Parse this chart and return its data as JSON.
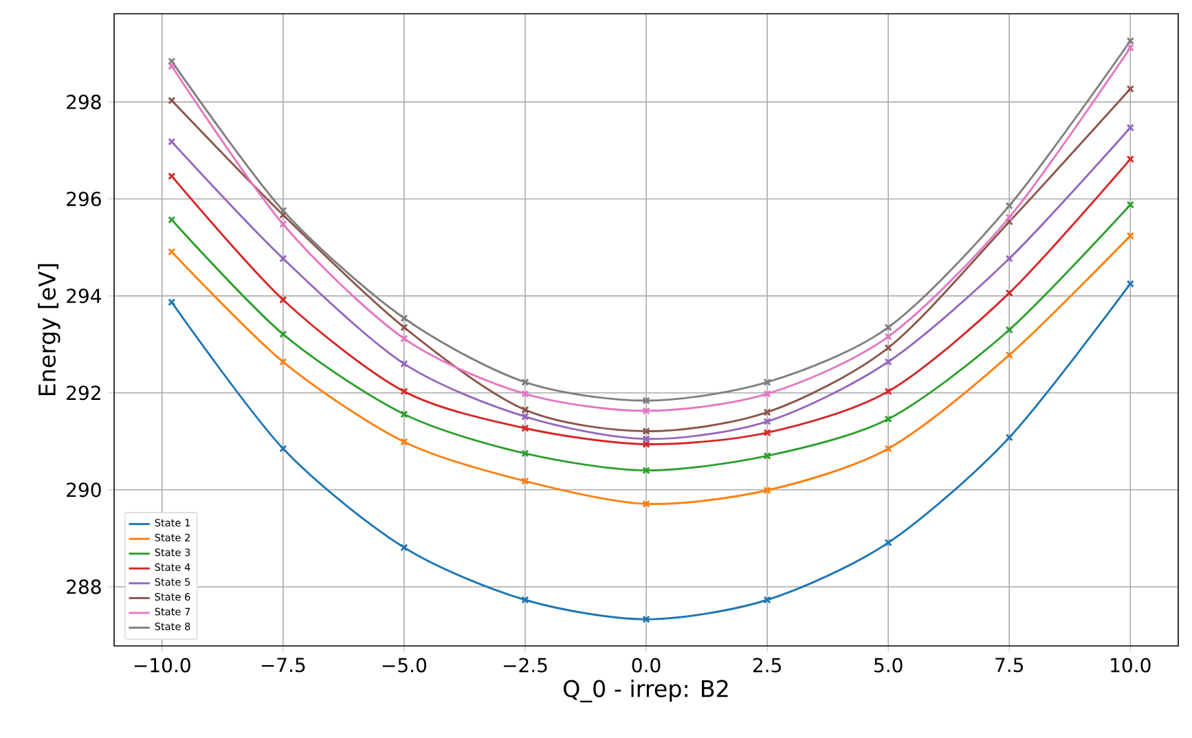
{
  "chart_data": {
    "type": "line",
    "xlabel": "Q_0 - irrep: B2",
    "ylabel": "Energy [eV]",
    "xlim": [
      -10.99,
      10.99
    ],
    "ylim": [
      286.78,
      299.82
    ],
    "xticks": [
      {
        "value": -10,
        "label": "−10.0"
      },
      {
        "value": -7.5,
        "label": "−7.5"
      },
      {
        "value": -5,
        "label": "−5.0"
      },
      {
        "value": -2.5,
        "label": "−2.5"
      },
      {
        "value": 0,
        "label": "0.0"
      },
      {
        "value": 2.5,
        "label": "2.5"
      },
      {
        "value": 5,
        "label": "5.0"
      },
      {
        "value": 7.5,
        "label": "7.5"
      },
      {
        "value": 10,
        "label": "10.0"
      }
    ],
    "yticks": [
      288,
      290,
      292,
      294,
      296,
      298
    ],
    "grid": true,
    "legend": "bottom left",
    "x": [
      -9.8,
      -7.5,
      -5,
      -2.5,
      0,
      2.5,
      5,
      7.5,
      10
    ],
    "series": [
      {
        "name": "State 1",
        "marker": "none",
        "color": "#1f77b4",
        "values": [
          293.87,
          290.85,
          288.81,
          287.73,
          287.33,
          287.73,
          288.91,
          291.08,
          294.25
        ]
      },
      {
        "name": "State 2",
        "marker": "none",
        "color": "#ff7f0e",
        "values": [
          294.91,
          292.64,
          290.99,
          290.18,
          289.71,
          289.99,
          290.85,
          292.78,
          295.24
        ]
      },
      {
        "name": "State 3",
        "marker": "none",
        "color": "#2ca02c",
        "values": [
          295.57,
          293.21,
          291.56,
          290.75,
          290.4,
          290.7,
          291.46,
          293.3,
          295.88
        ]
      },
      {
        "name": "State 4",
        "marker": "none",
        "color": "#d62728",
        "values": [
          296.47,
          293.92,
          292.03,
          291.27,
          290.94,
          291.18,
          292.03,
          294.06,
          296.82
        ]
      },
      {
        "name": "State 5",
        "marker": "none",
        "color": "#9467bd",
        "values": [
          297.18,
          294.77,
          292.6,
          291.51,
          291.05,
          291.41,
          292.64,
          294.77,
          297.47
        ]
      },
      {
        "name": "State 6",
        "marker": "none",
        "color": "#8c564b",
        "values": [
          298.03,
          295.67,
          293.35,
          291.65,
          291.21,
          291.6,
          292.93,
          295.53,
          298.27
        ]
      },
      {
        "name": "State 7",
        "marker": "none",
        "color": "#e377c2",
        "values": [
          298.74,
          295.48,
          293.12,
          291.98,
          291.63,
          291.98,
          293.16,
          295.62,
          299.12
        ]
      },
      {
        "name": "State 8",
        "marker": "none",
        "color": "#7f7f7f",
        "values": [
          298.84,
          295.76,
          293.54,
          292.22,
          291.84,
          292.22,
          293.35,
          295.86,
          299.26
        ]
      },
      {
        "type": "scatter",
        "marker": "cross",
        "color": "#1f77b4",
        "values": [
          293.87,
          290.85,
          288.81,
          287.73,
          287.33,
          287.73,
          288.91,
          291.08,
          294.25
        ]
      },
      {
        "type": "scatter",
        "marker": "cross",
        "color": "#ff7f0e",
        "values": [
          294.91,
          292.64,
          290.99,
          290.18,
          289.71,
          289.99,
          290.85,
          292.78,
          295.24
        ]
      },
      {
        "type": "scatter",
        "marker": "cross",
        "color": "#2ca02c",
        "values": [
          295.57,
          293.21,
          291.56,
          290.75,
          290.4,
          290.7,
          291.46,
          293.3,
          295.88
        ]
      },
      {
        "type": "scatter",
        "marker": "cross",
        "color": "#d62728",
        "values": [
          296.47,
          293.92,
          292.03,
          291.27,
          290.94,
          291.18,
          292.03,
          294.06,
          296.82
        ]
      },
      {
        "type": "scatter",
        "marker": "cross",
        "color": "#9467bd",
        "values": [
          297.18,
          294.77,
          292.6,
          291.51,
          291.05,
          291.41,
          292.64,
          294.77,
          297.47
        ]
      },
      {
        "type": "scatter",
        "marker": "cross",
        "color": "#8c564b",
        "values": [
          298.03,
          295.67,
          293.35,
          291.65,
          291.21,
          291.6,
          292.93,
          295.53,
          298.27
        ]
      },
      {
        "type": "scatter",
        "marker": "cross",
        "color": "#e377c2",
        "values": [
          298.74,
          295.48,
          293.12,
          291.98,
          291.63,
          291.98,
          293.16,
          295.62,
          299.12
        ]
      },
      {
        "type": "scatter",
        "marker": "cross",
        "color": "#7f7f7f",
        "values": [
          298.84,
          295.76,
          293.54,
          292.22,
          291.84,
          292.22,
          293.35,
          295.86,
          299.26
        ]
      }
    ]
  }
}
